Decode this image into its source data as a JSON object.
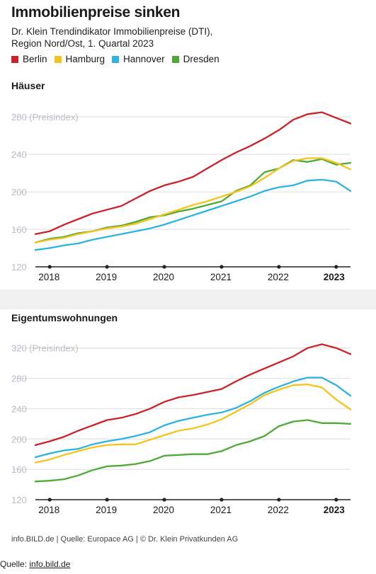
{
  "header": {
    "title": "Immobilienpreise sinken",
    "subtitle": "Dr. Klein Trendindikator Immobilienpreise (DTI),\nRegion Nord/Ost, 1. Quartal 2023"
  },
  "legend": [
    {
      "name": "Berlin",
      "color": "#cc2229"
    },
    {
      "name": "Hamburg",
      "color": "#f5c31c"
    },
    {
      "name": "Hannover",
      "color": "#2bb3e3"
    },
    {
      "name": "Dresden",
      "color": "#4eaa35"
    }
  ],
  "chart_data": [
    {
      "type": "line",
      "title": "Häuser",
      "ylabel": "Preisindex",
      "ylim": [
        120,
        290
      ],
      "yticks": [
        "120",
        "160",
        "200",
        "240",
        "280 (Preisindex)"
      ],
      "xticks": [
        "2018",
        "2019",
        "2020",
        "2021",
        "2022",
        "2023"
      ],
      "x": [
        2017.75,
        2018.0,
        2018.25,
        2018.5,
        2018.75,
        2019.0,
        2019.25,
        2019.5,
        2019.75,
        2020.0,
        2020.25,
        2020.5,
        2020.75,
        2021.0,
        2021.25,
        2021.5,
        2021.75,
        2022.0,
        2022.25,
        2022.5,
        2022.75,
        2023.0,
        2023.25
      ],
      "series": [
        {
          "name": "Berlin",
          "values": [
            155,
            158,
            165,
            171,
            177,
            181,
            185,
            193,
            201,
            207,
            211,
            216,
            225,
            234,
            242,
            249,
            257,
            266,
            277,
            283,
            285,
            279,
            273
          ]
        },
        {
          "name": "Hamburg",
          "values": [
            146,
            149,
            151,
            155,
            158,
            161,
            163,
            166,
            171,
            176,
            181,
            186,
            190,
            195,
            200,
            206,
            215,
            225,
            233,
            236,
            236,
            231,
            224
          ]
        },
        {
          "name": "Hannover",
          "values": [
            138,
            140,
            143,
            145,
            149,
            152,
            155,
            158,
            161,
            165,
            170,
            175,
            180,
            185,
            190,
            195,
            201,
            205,
            207,
            212,
            213,
            211,
            201
          ]
        },
        {
          "name": "Dresden",
          "values": [
            146,
            150,
            152,
            156,
            158,
            162,
            164,
            168,
            173,
            175,
            179,
            182,
            186,
            190,
            201,
            207,
            221,
            225,
            234,
            232,
            235,
            229,
            231
          ]
        }
      ]
    },
    {
      "type": "line",
      "title": "Eigentumswohnungen",
      "ylabel": "Preisindex",
      "ylim": [
        120,
        330
      ],
      "yticks": [
        "120",
        "160",
        "200",
        "240",
        "280",
        "320 (Preisindex)"
      ],
      "xticks": [
        "2018",
        "2019",
        "2020",
        "2021",
        "2022",
        "2023"
      ],
      "x": [
        2017.75,
        2018.0,
        2018.25,
        2018.5,
        2018.75,
        2019.0,
        2019.25,
        2019.5,
        2019.75,
        2020.0,
        2020.25,
        2020.5,
        2020.75,
        2021.0,
        2021.25,
        2021.5,
        2021.75,
        2022.0,
        2022.25,
        2022.5,
        2022.75,
        2023.0,
        2023.25
      ],
      "series": [
        {
          "name": "Berlin",
          "values": [
            192,
            197,
            203,
            211,
            218,
            225,
            228,
            233,
            240,
            249,
            255,
            258,
            262,
            266,
            276,
            285,
            293,
            301,
            309,
            320,
            325,
            320,
            312
          ]
        },
        {
          "name": "Hamburg",
          "values": [
            169,
            173,
            179,
            184,
            189,
            192,
            193,
            193,
            199,
            205,
            211,
            214,
            219,
            226,
            236,
            246,
            258,
            265,
            271,
            272,
            268,
            252,
            239
          ]
        },
        {
          "name": "Hannover",
          "values": [
            176,
            181,
            185,
            187,
            193,
            197,
            200,
            204,
            209,
            218,
            224,
            228,
            232,
            235,
            241,
            250,
            261,
            269,
            276,
            281,
            281,
            271,
            257
          ]
        },
        {
          "name": "Dresden",
          "values": [
            144,
            145,
            147,
            152,
            159,
            164,
            165,
            167,
            171,
            178,
            179,
            180,
            180,
            184,
            192,
            197,
            204,
            217,
            223,
            225,
            221,
            221,
            220
          ]
        }
      ]
    }
  ],
  "footer": {
    "credits": "info.BILD.de | Quelle: Europace AG | © Dr. Klein Privatkunden AG",
    "source_label": "Quelle: ",
    "source_link": "info.bild.de"
  }
}
